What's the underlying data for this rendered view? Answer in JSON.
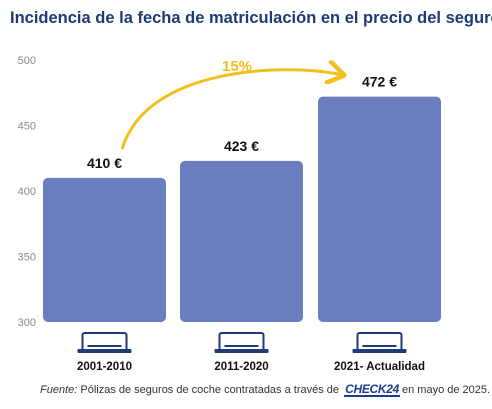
{
  "chart_data": {
    "type": "bar",
    "title": "Incidencia de la fecha de matriculación en el precio del seguro",
    "categories": [
      "2001-2010",
      "2011-2020",
      "2021- Actualidad"
    ],
    "values": [
      410,
      423,
      472
    ],
    "value_labels": [
      "410 €",
      "423 €",
      "472 €"
    ],
    "yticks": [
      300,
      350,
      400,
      450,
      500
    ],
    "ylim": [
      300,
      500
    ],
    "xlabel": "",
    "ylabel": "",
    "grid": false,
    "annotation": {
      "text": "15%",
      "from_category": "2001-2010",
      "to_category": "2021- Actualidad"
    },
    "colors": {
      "bar": "#6a7dbf",
      "arrow": "#f2c01e",
      "title": "#1f3a74",
      "axis_text": "#8a8a8a",
      "label_icon": "#1f3a74"
    },
    "category_icon": "license-plate-icon"
  },
  "footer": {
    "label": "Fuente:",
    "text_before": " Pólizas de seguros de coche contratadas a través de",
    "brand": "CHECK24",
    "text_after": "en mayo de 2025."
  }
}
